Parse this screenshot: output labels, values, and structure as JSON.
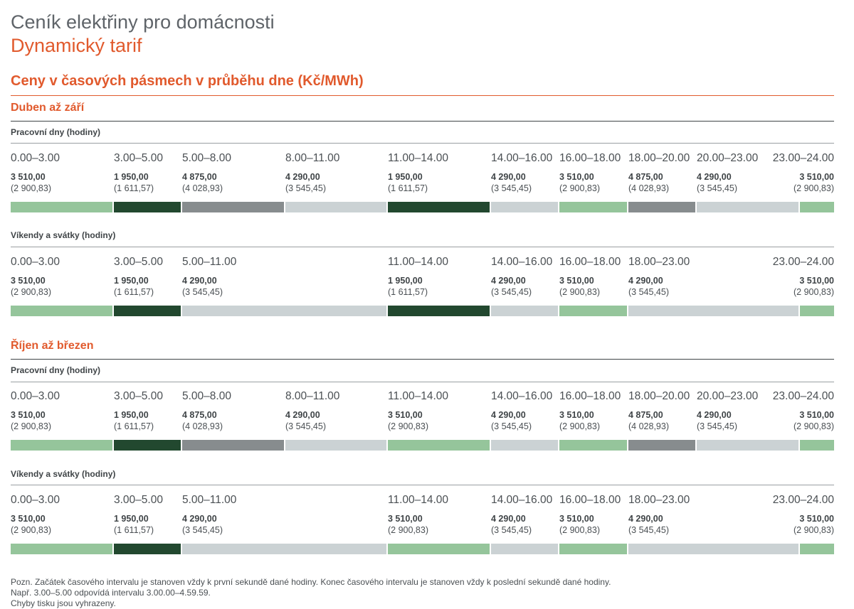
{
  "header": {
    "title": "Ceník elektřiny pro domácnosti",
    "subtitle": "Dynamický tarif",
    "section_title": "Ceny v časových pásmech v průběhu dne (Kč/MWh)"
  },
  "colors": {
    "accent": "#e15a2d",
    "L": "#95c59b",
    "D": "#22482f",
    "M": "#878c8e",
    "P": "#cbd2d4"
  },
  "seasons": [
    {
      "name": "Duben až září",
      "day_types": [
        {
          "label": "Pracovní dny (hodiny)",
          "segments": [
            {
              "time": "0.00–3.00",
              "price": "3 510,00",
              "sub": "(2 900,83)",
              "hours": 3,
              "color": "L"
            },
            {
              "time": "3.00–5.00",
              "price": "1 950,00",
              "sub": "(1 611,57)",
              "hours": 2,
              "color": "D"
            },
            {
              "time": "5.00–8.00",
              "price": "4 875,00",
              "sub": "(4 028,93)",
              "hours": 3,
              "color": "M"
            },
            {
              "time": "8.00–11.00",
              "price": "4 290,00",
              "sub": "(3 545,45)",
              "hours": 3,
              "color": "P"
            },
            {
              "time": "11.00–14.00",
              "price": "1 950,00",
              "sub": "(1 611,57)",
              "hours": 3,
              "color": "D"
            },
            {
              "time": "14.00–16.00",
              "price": "4 290,00",
              "sub": "(3 545,45)",
              "hours": 2,
              "color": "P"
            },
            {
              "time": "16.00–18.00",
              "price": "3 510,00",
              "sub": "(2 900,83)",
              "hours": 2,
              "color": "L"
            },
            {
              "time": "18.00–20.00",
              "price": "4 875,00",
              "sub": "(4 028,93)",
              "hours": 2,
              "color": "M"
            },
            {
              "time": "20.00–23.00",
              "price": "4 290,00",
              "sub": "(3 545,45)",
              "hours": 3,
              "color": "P"
            },
            {
              "time": "23.00–24.00",
              "price": "3 510,00",
              "sub": "(2 900,83)",
              "hours": 1,
              "color": "L"
            }
          ]
        },
        {
          "label": "Víkendy a svátky (hodiny)",
          "segments": [
            {
              "time": "0.00–3.00",
              "price": "3 510,00",
              "sub": "(2 900,83)",
              "hours": 3,
              "color": "L"
            },
            {
              "time": "3.00–5.00",
              "price": "1 950,00",
              "sub": "(1 611,57)",
              "hours": 2,
              "color": "D"
            },
            {
              "time": "5.00–11.00",
              "price": "4 290,00",
              "sub": "(3 545,45)",
              "hours": 6,
              "color": "P"
            },
            {
              "time": "11.00–14.00",
              "price": "1 950,00",
              "sub": "(1 611,57)",
              "hours": 3,
              "color": "D"
            },
            {
              "time": "14.00–16.00",
              "price": "4 290,00",
              "sub": "(3 545,45)",
              "hours": 2,
              "color": "P"
            },
            {
              "time": "16.00–18.00",
              "price": "3 510,00",
              "sub": "(2 900,83)",
              "hours": 2,
              "color": "L"
            },
            {
              "time": "18.00–23.00",
              "price": "4 290,00",
              "sub": "(3 545,45)",
              "hours": 5,
              "color": "P"
            },
            {
              "time": "23.00–24.00",
              "price": "3 510,00",
              "sub": "(2 900,83)",
              "hours": 1,
              "color": "L"
            }
          ]
        }
      ]
    },
    {
      "name": "Říjen až březen",
      "day_types": [
        {
          "label": "Pracovní dny (hodiny)",
          "segments": [
            {
              "time": "0.00–3.00",
              "price": "3 510,00",
              "sub": "(2 900,83)",
              "hours": 3,
              "color": "L"
            },
            {
              "time": "3.00–5.00",
              "price": "1 950,00",
              "sub": "(1 611,57)",
              "hours": 2,
              "color": "D"
            },
            {
              "time": "5.00–8.00",
              "price": "4 875,00",
              "sub": "(4 028,93)",
              "hours": 3,
              "color": "M"
            },
            {
              "time": "8.00–11.00",
              "price": "4 290,00",
              "sub": "(3 545,45)",
              "hours": 3,
              "color": "P"
            },
            {
              "time": "11.00–14.00",
              "price": "3 510,00",
              "sub": "(2 900,83)",
              "hours": 3,
              "color": "L"
            },
            {
              "time": "14.00–16.00",
              "price": "4 290,00",
              "sub": "(3 545,45)",
              "hours": 2,
              "color": "P"
            },
            {
              "time": "16.00–18.00",
              "price": "3 510,00",
              "sub": "(2 900,83)",
              "hours": 2,
              "color": "L"
            },
            {
              "time": "18.00–20.00",
              "price": "4 875,00",
              "sub": "(4 028,93)",
              "hours": 2,
              "color": "M"
            },
            {
              "time": "20.00–23.00",
              "price": "4 290,00",
              "sub": "(3 545,45)",
              "hours": 3,
              "color": "P"
            },
            {
              "time": "23.00–24.00",
              "price": "3 510,00",
              "sub": "(2 900,83)",
              "hours": 1,
              "color": "L"
            }
          ]
        },
        {
          "label": "Víkendy a svátky (hodiny)",
          "segments": [
            {
              "time": "0.00–3.00",
              "price": "3 510,00",
              "sub": "(2 900,83)",
              "hours": 3,
              "color": "L"
            },
            {
              "time": "3.00–5.00",
              "price": "1 950,00",
              "sub": "(1 611,57)",
              "hours": 2,
              "color": "D"
            },
            {
              "time": "5.00–11.00",
              "price": "4 290,00",
              "sub": "(3 545,45)",
              "hours": 6,
              "color": "P"
            },
            {
              "time": "11.00–14.00",
              "price": "3 510,00",
              "sub": "(2 900,83)",
              "hours": 3,
              "color": "L"
            },
            {
              "time": "14.00–16.00",
              "price": "4 290,00",
              "sub": "(3 545,45)",
              "hours": 2,
              "color": "P"
            },
            {
              "time": "16.00–18.00",
              "price": "3 510,00",
              "sub": "(2 900,83)",
              "hours": 2,
              "color": "L"
            },
            {
              "time": "18.00–23.00",
              "price": "4 290,00",
              "sub": "(3 545,45)",
              "hours": 5,
              "color": "P"
            },
            {
              "time": "23.00–24.00",
              "price": "3 510,00",
              "sub": "(2 900,83)",
              "hours": 1,
              "color": "L"
            }
          ]
        }
      ]
    }
  ],
  "footer": {
    "line1": "Pozn. Začátek časového intervalu je stanoven vždy k první sekundě dané hodiny. Konec časového intervalu je stanoven vždy k poslední sekundě dané hodiny.",
    "line2": "Např. 3.00–5.00 odpovídá intervalu 3.00.00–4.59.59.",
    "line3": "Chyby tisku jsou vyhrazeny."
  }
}
